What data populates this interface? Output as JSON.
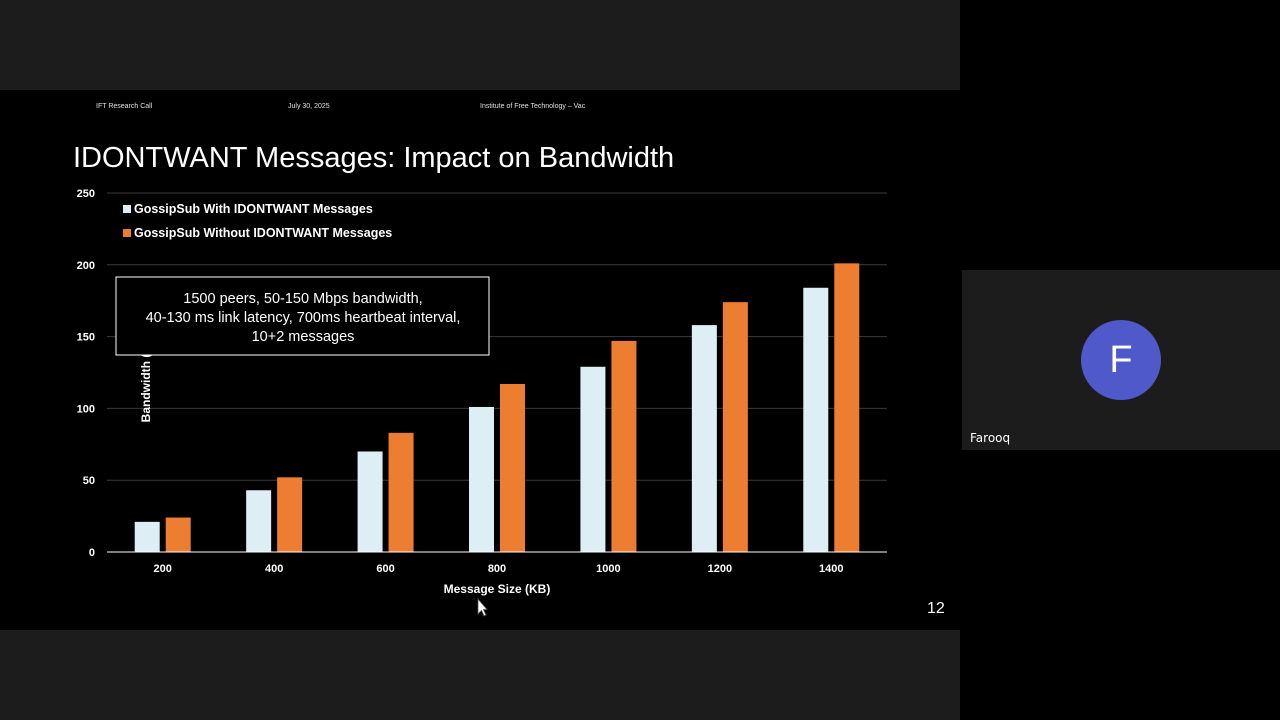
{
  "slide": {
    "header_left": "IFT Research Call",
    "header_date": "July 30, 2025",
    "header_org": "Institute of Free Technology – Vac",
    "title": "IDONTWANT Messages: Impact on Bandwidth",
    "slide_number": "12",
    "annotation": [
      "1500 peers, 50-150 Mbps bandwidth,",
      "40-130 ms link latency, 700ms heartbeat interval,",
      "10+2 messages"
    ]
  },
  "participant": {
    "initial": "F",
    "name": "Farooq",
    "avatar_color": "#5059c9"
  },
  "chart_data": {
    "type": "bar",
    "categories": [
      "200",
      "400",
      "600",
      "800",
      "1000",
      "1200",
      "1400"
    ],
    "series": [
      {
        "name": "GossipSub With IDONTWANT Messages",
        "color": "#deeef5",
        "values": [
          21,
          43,
          70,
          101,
          129,
          158,
          184
        ]
      },
      {
        "name": "GossipSub Without IDONTWANT Messages",
        "color": "#ed7d31",
        "values": [
          24,
          52,
          83,
          117,
          147,
          174,
          201
        ]
      }
    ],
    "xlabel": "Message Size (KB)",
    "ylabel": "Bandwidth (GB)",
    "ylim": [
      0,
      250
    ],
    "yticks": [
      0,
      50,
      100,
      150,
      200,
      250
    ],
    "grid": true,
    "legend": "top-left"
  }
}
